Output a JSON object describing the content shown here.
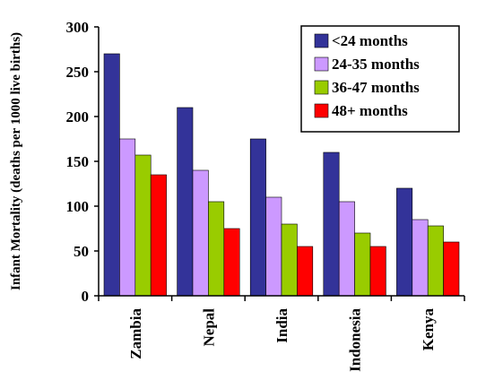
{
  "chart_data": {
    "type": "bar",
    "title": "",
    "xlabel": "",
    "ylabel": "Infant Mortality (deaths per 1000 live births)",
    "ylim": [
      0,
      300
    ],
    "yticks": [
      0,
      50,
      100,
      150,
      200,
      250,
      300
    ],
    "categories": [
      "Zambia",
      "Nepal",
      "India",
      "Indonesia",
      "Kenya"
    ],
    "series": [
      {
        "name": "<24 months",
        "color": "#333399",
        "values": [
          270,
          210,
          175,
          160,
          120
        ]
      },
      {
        "name": "24-35 months",
        "color": "#cc99ff",
        "values": [
          175,
          140,
          110,
          105,
          85
        ]
      },
      {
        "name": "36-47 months",
        "color": "#99cc00",
        "values": [
          157,
          105,
          80,
          70,
          78
        ]
      },
      {
        "name": "48+ months",
        "color": "#ff0000",
        "values": [
          135,
          75,
          55,
          55,
          60
        ]
      }
    ],
    "legend_position": "top-right",
    "grid": false
  }
}
